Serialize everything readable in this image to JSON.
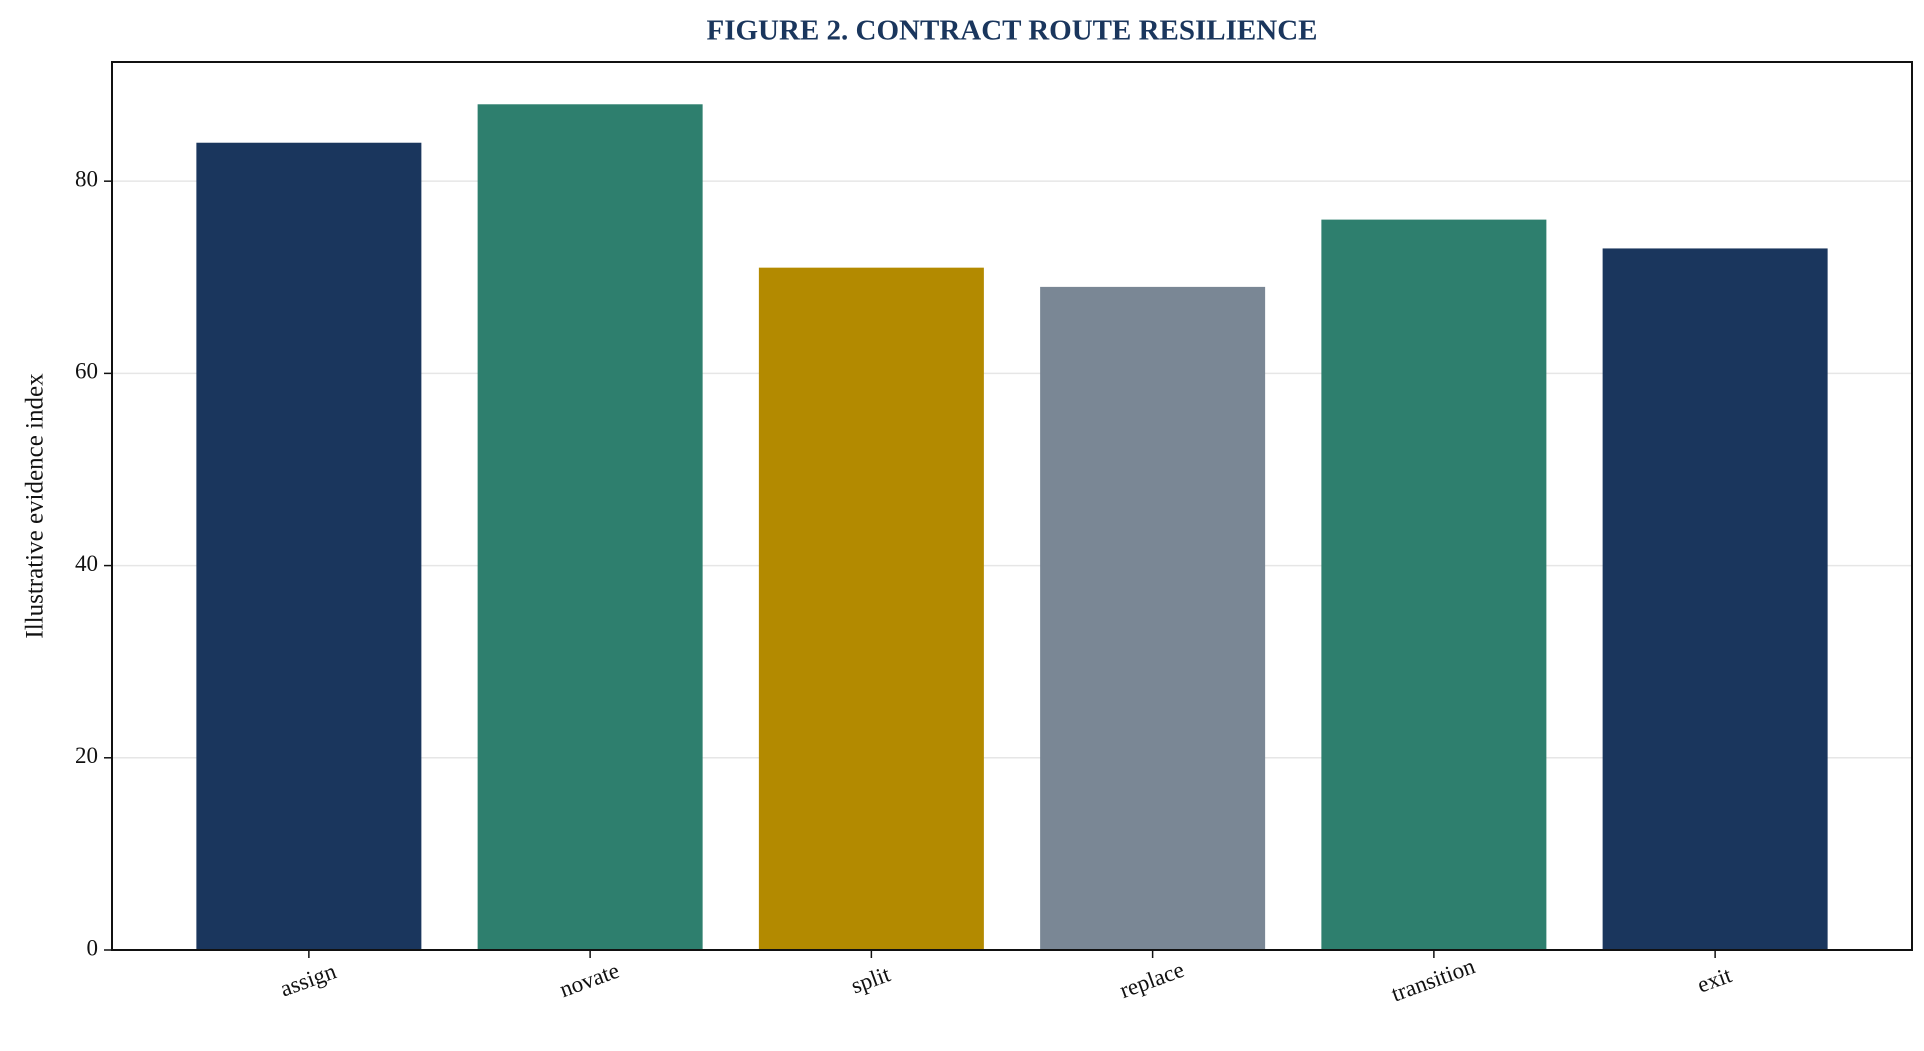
{
  "chart_data": {
    "type": "bar",
    "title": "FIGURE 2. CONTRACT ROUTE RESILIENCE",
    "y_label": "Illustrative evidence index",
    "categories": [
      "assign",
      "novate",
      "split",
      "replace",
      "transition",
      "exit"
    ],
    "values": [
      84,
      88,
      71,
      69,
      76,
      73
    ],
    "colors": [
      "#1a365d",
      "#2e7f6e",
      "#b38a00",
      "#7a8795",
      "#2e7f6e",
      "#1a365d"
    ],
    "ylim": [
      0,
      92.4
    ],
    "yticks": [
      0,
      20,
      40,
      60,
      80
    ],
    "grid": true
  }
}
